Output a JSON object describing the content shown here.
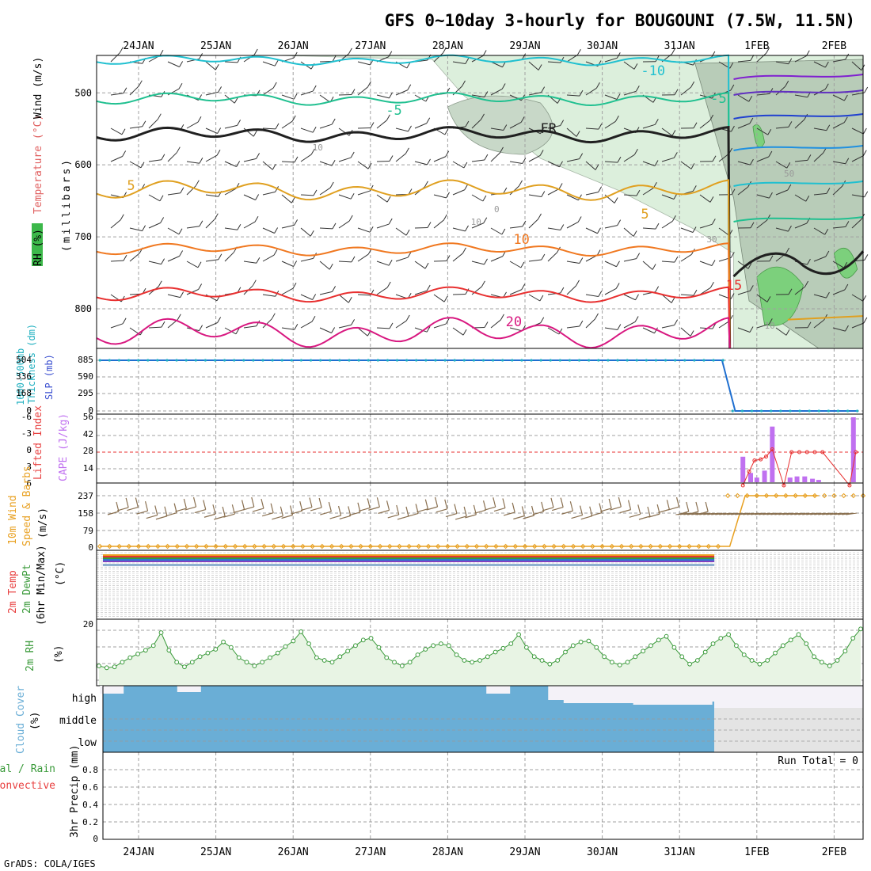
{
  "title": "GFS 0~10day 3-hourly for BOUGOUNI (7.5W, 11.5N)",
  "footer": "GrADS: COLA/IGES",
  "dates": [
    "24JAN",
    "25JAN",
    "26JAN",
    "27JAN",
    "28JAN",
    "29JAN",
    "30JAN",
    "31JAN",
    "1FEB",
    "2FEB"
  ],
  "colors": {
    "grid": "#a0a0a0",
    "rh_fill": "#dcefdc",
    "cloud": "#6aaed6",
    "blue_line": "#1f6fd0",
    "li_red": "#e83030",
    "cape_purple": "#c070f0",
    "wind_orange": "#e8a020",
    "barb_brown": "#8a7050",
    "rh_green": "#3a9a3a"
  },
  "chart_data": [
    {
      "type": "line",
      "name": "upper_air",
      "ylabel_parts": [
        "RH (%)",
        "Temperature (°C)",
        "Wind (m/s)"
      ],
      "ylabel2": "(millibars)",
      "y_ticks": [
        500,
        600,
        700,
        800
      ],
      "ylim": [
        855,
        448
      ],
      "contour_labels": [
        "-10",
        "-5",
        "-5",
        "FR",
        "5",
        "5",
        "10",
        "15",
        "20",
        "0",
        "10",
        "10",
        "30",
        "50",
        "10"
      ],
      "grid": true
    },
    {
      "type": "line",
      "name": "thickness_slp",
      "ylabel_left": [
        "1000-500mb",
        "Thickness (dm)"
      ],
      "ylabel_right": "SLP (mb)",
      "left_ticks": [
        "504",
        "336",
        "168",
        "0"
      ],
      "right_ticks": [
        "885",
        "590",
        "295",
        "0"
      ],
      "ylim": [
        0,
        885
      ],
      "x": [
        "23JAN12",
        "31JAN18",
        "1FEB00",
        "2FEB06"
      ],
      "values_slp": [
        885,
        885,
        0,
        0
      ],
      "grid": true
    },
    {
      "type": "bar",
      "name": "li_cape",
      "ylabel_left": "Lifted Index",
      "ylabel_right": "CAPE (J/kg)",
      "left_ticks": [
        "-6",
        "-3",
        "0",
        "3",
        "6"
      ],
      "right_ticks": [
        "56",
        "42",
        "28",
        "14"
      ],
      "cape_ylim": [
        0,
        56
      ],
      "cape_x": [
        7.82,
        7.92,
        8.0,
        8.1,
        8.2,
        8.33,
        8.43,
        8.52,
        8.62,
        8.72,
        8.8,
        9.25
      ],
      "cape_values": [
        22,
        8,
        4,
        10,
        48,
        0,
        4,
        5,
        5,
        3,
        2,
        56
      ],
      "li_x": [
        7.82,
        7.9,
        7.97,
        8.05,
        8.12,
        8.2,
        8.35,
        8.45,
        8.55,
        8.65,
        8.75,
        8.85,
        9.2,
        9.28
      ],
      "li_values": [
        6,
        3.5,
        1.5,
        1.3,
        0.8,
        -0.5,
        6,
        0,
        0,
        0,
        0,
        0,
        6,
        0
      ],
      "grid": true
    },
    {
      "type": "line",
      "name": "wind10m",
      "ylabel": [
        "10m Wind",
        "Speed & Barbs",
        "(m/s)"
      ],
      "y_ticks": [
        "237",
        "158",
        "79",
        "0"
      ],
      "ylim": [
        0,
        237
      ],
      "x_days": [
        0,
        8.15,
        8.35,
        9.3
      ],
      "values": [
        0,
        0,
        237,
        237
      ],
      "grid": true
    },
    {
      "type": "line",
      "name": "temp2m",
      "ylabel": [
        "2m Temp",
        "2m DewPt",
        "(6hr Min/Max)",
        "(°C)"
      ],
      "y_ticks": [
        "20"
      ],
      "grid": true
    },
    {
      "type": "area",
      "name": "rh2m",
      "ylabel": [
        "2m RH",
        "(%)"
      ],
      "values": [
        18,
        16,
        17,
        22,
        27,
        31,
        35,
        40,
        54,
        35,
        22,
        17,
        22,
        28,
        32,
        36,
        44,
        38,
        27,
        22,
        18,
        22,
        27,
        32,
        39,
        45,
        55,
        42,
        27,
        24,
        22,
        28,
        34,
        40,
        46,
        48,
        38,
        27,
        22,
        18,
        22,
        30,
        36,
        40,
        42,
        40,
        30,
        24,
        22,
        24,
        28,
        33,
        37,
        42,
        52,
        38,
        28,
        24,
        20,
        24,
        33,
        40,
        44,
        45,
        38,
        28,
        22,
        19,
        22,
        28,
        34,
        40,
        46,
        50,
        38,
        28,
        20,
        24,
        33,
        42,
        48,
        52,
        40,
        30,
        24,
        20,
        24,
        32,
        40,
        46,
        52,
        42,
        28,
        22,
        18,
        24,
        34,
        48,
        58
      ],
      "grid": true
    },
    {
      "type": "heatmap",
      "name": "cloud_cover",
      "ylabel": [
        "Cloud Cover",
        "(%)"
      ],
      "levels": [
        "high",
        "middle",
        "low"
      ],
      "grid": true
    },
    {
      "type": "bar",
      "name": "precip",
      "ylabel_right": "3hr Precip (mm)",
      "ylabel_left": [
        "Total / Rain",
        "Convective"
      ],
      "y_ticks": [
        "0.8",
        "0.6",
        "0.4",
        "0.2",
        "0"
      ],
      "ylim": [
        0,
        1
      ],
      "run_total": "Run Total = 0",
      "values": [],
      "grid": true
    }
  ]
}
